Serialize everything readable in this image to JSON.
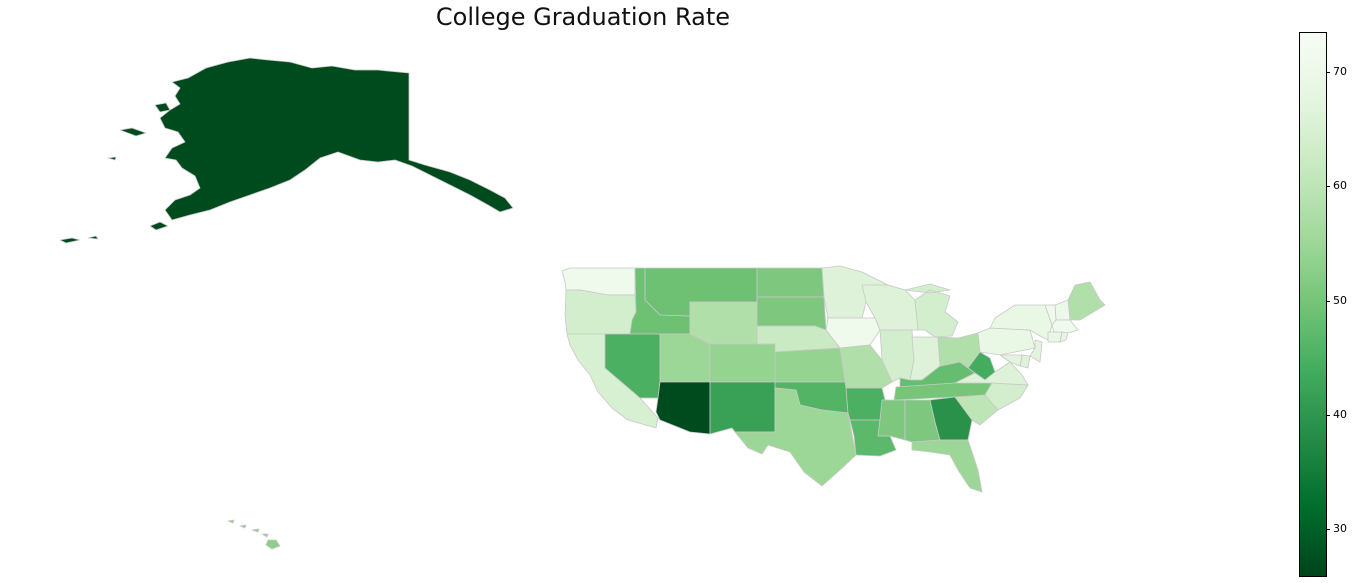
{
  "chart_data": {
    "type": "choropleth",
    "title": "College Graduation Rate",
    "colormap": "Greens (reversed: dark = low)",
    "colorbar": {
      "min": 26,
      "max": 73.5,
      "ticks": [
        30,
        40,
        50,
        60,
        70
      ]
    },
    "states": [
      {
        "code": "AK",
        "name": "Alaska",
        "value": 27
      },
      {
        "code": "HI",
        "name": "Hawaii",
        "value": 53
      },
      {
        "code": "WA",
        "name": "Washington",
        "value": 71
      },
      {
        "code": "OR",
        "name": "Oregon",
        "value": 64
      },
      {
        "code": "CA",
        "name": "California",
        "value": 65
      },
      {
        "code": "ID",
        "name": "Idaho",
        "value": 49
      },
      {
        "code": "NV",
        "name": "Nevada",
        "value": 45
      },
      {
        "code": "MT",
        "name": "Montana",
        "value": 49
      },
      {
        "code": "WY",
        "name": "Wyoming",
        "value": 58
      },
      {
        "code": "UT",
        "name": "Utah",
        "value": 55
      },
      {
        "code": "AZ",
        "name": "Arizona",
        "value": 27
      },
      {
        "code": "CO",
        "name": "Colorado",
        "value": 54
      },
      {
        "code": "NM",
        "name": "New Mexico",
        "value": 42
      },
      {
        "code": "ND",
        "name": "North Dakota",
        "value": 51
      },
      {
        "code": "SD",
        "name": "South Dakota",
        "value": 51
      },
      {
        "code": "NE",
        "name": "Nebraska",
        "value": 62
      },
      {
        "code": "KS",
        "name": "Kansas",
        "value": 54
      },
      {
        "code": "OK",
        "name": "Oklahoma",
        "value": 46
      },
      {
        "code": "TX",
        "name": "Texas",
        "value": 55
      },
      {
        "code": "MN",
        "name": "Minnesota",
        "value": 66
      },
      {
        "code": "IA",
        "name": "Iowa",
        "value": 71
      },
      {
        "code": "MO",
        "name": "Missouri",
        "value": 58
      },
      {
        "code": "AR",
        "name": "Arkansas",
        "value": 45
      },
      {
        "code": "LA",
        "name": "Louisiana",
        "value": 47
      },
      {
        "code": "WI",
        "name": "Wisconsin",
        "value": 66
      },
      {
        "code": "IL",
        "name": "Illinois",
        "value": 64
      },
      {
        "code": "MS",
        "name": "Mississippi",
        "value": 51
      },
      {
        "code": "MI",
        "name": "Michigan",
        "value": 64
      },
      {
        "code": "IN",
        "name": "Indiana",
        "value": 66
      },
      {
        "code": "KY",
        "name": "Kentucky",
        "value": 48
      },
      {
        "code": "TN",
        "name": "Tennessee",
        "value": 50
      },
      {
        "code": "AL",
        "name": "Alabama",
        "value": 51
      },
      {
        "code": "OH",
        "name": "Ohio",
        "value": 58
      },
      {
        "code": "WV",
        "name": "West Virginia",
        "value": 44
      },
      {
        "code": "GA",
        "name": "Georgia",
        "value": 39
      },
      {
        "code": "FL",
        "name": "Florida",
        "value": 55
      },
      {
        "code": "SC",
        "name": "South Carolina",
        "value": 60
      },
      {
        "code": "NC",
        "name": "North Carolina",
        "value": 64
      },
      {
        "code": "VA",
        "name": "Virginia",
        "value": 66
      },
      {
        "code": "PA",
        "name": "Pennsylvania",
        "value": 69
      },
      {
        "code": "NY",
        "name": "New York",
        "value": 69
      },
      {
        "code": "ME",
        "name": "Maine",
        "value": 58
      },
      {
        "code": "NH",
        "name": "New Hampshire",
        "value": 70
      },
      {
        "code": "VT",
        "name": "Vermont",
        "value": 71
      },
      {
        "code": "MA",
        "name": "Massachusetts",
        "value": 71
      },
      {
        "code": "CT",
        "name": "Connecticut",
        "value": 69
      },
      {
        "code": "RI",
        "name": "Rhode Island",
        "value": 68
      },
      {
        "code": "NJ",
        "name": "New Jersey",
        "value": 67
      },
      {
        "code": "DE",
        "name": "Delaware",
        "value": 66
      },
      {
        "code": "MD",
        "name": "Maryland",
        "value": 67
      }
    ]
  }
}
